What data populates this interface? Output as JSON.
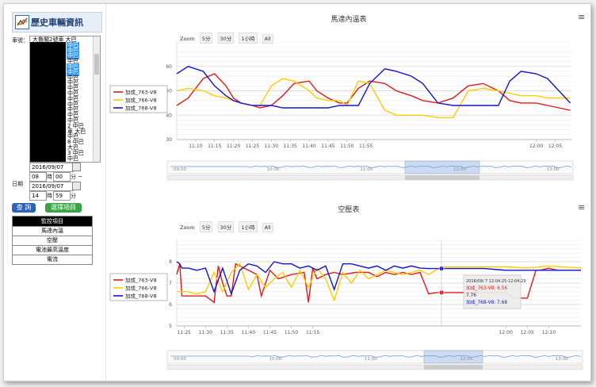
{
  "sidebar": {
    "title": "歷史車輛資訊",
    "vehicle_label": "車號：",
    "vehicles": [
      "大魯閣2號車 大巴",
      "中巴",
      "中巴",
      "中巴",
      "中巴",
      "中巴",
      "中巴",
      "中巴",
      "中巴",
      "中巴",
      "中巴",
      "中巴",
      "中巴",
      "中巴",
      "中巴",
      "中巴",
      "2 中巴",
      "車 大巴",
      "中巴",
      "8 中巴",
      "大巴",
      "3 中巴",
      "中巴"
    ],
    "date_label": "日期",
    "start_date": "2016/09/07",
    "start_hour": "08",
    "hour_unit": "時",
    "start_min": "00",
    "min_unit": "分 ~",
    "end_date": "2016/09/07",
    "end_hour": "14",
    "end_min": "59",
    "end_min_unit": "分",
    "query_button": "查 詢",
    "select_button": "選擇項目",
    "monitor_header": "監控項目",
    "monitor_items": [
      "馬達內溫",
      "空壓",
      "電池最高溫度",
      "電流"
    ]
  },
  "zoom_buttons": {
    "label": "Zoom",
    "b1": "5分",
    "b2": "30分",
    "b3": "1小時",
    "b4": "All"
  },
  "tooltip": {
    "header": "2016/09/ 7 12:04:25-12:04:29",
    "row1": "加成_763-V8: 6.56",
    "row2": "7.76",
    "row3": "加成_768-V8: 7.68"
  },
  "chart_data": [
    {
      "type": "line",
      "title": "馬達內溫表",
      "ylim": [
        30,
        70
      ],
      "yticks": [
        30,
        40,
        50,
        60
      ],
      "x_ticks": [
        "11:10",
        "11:15",
        "11:20",
        "11:25",
        "11:30",
        "11:35",
        "11:40",
        "11:45",
        "11:50",
        "11:55",
        "12:00",
        "12:05"
      ],
      "x_range": [
        11.05,
        12.093
      ],
      "navigator_labels": [
        "09:00",
        "10:00",
        "11:00",
        "12:00",
        "13:00"
      ],
      "series": [
        {
          "name": "加成_763-V8",
          "color": "#e31a1c",
          "x": [
            11.05,
            11.08,
            11.12,
            11.15,
            11.18,
            11.2,
            11.22,
            11.25,
            11.27,
            11.3,
            11.33,
            11.36,
            11.4,
            11.42,
            11.45,
            11.48,
            11.5,
            11.53,
            11.56,
            11.6,
            11.63,
            11.67,
            11.7,
            11.74,
            11.78,
            11.82,
            11.86,
            11.9,
            11.93,
            11.96,
            12.0,
            12.03,
            12.06,
            12.09
          ],
          "values": [
            44,
            47,
            55,
            57,
            52,
            47,
            45,
            44,
            43,
            44,
            48,
            53,
            54,
            50,
            47,
            45,
            45,
            51,
            54,
            53,
            50,
            48,
            46,
            45,
            47,
            52,
            53,
            50,
            46,
            45,
            45,
            44,
            43,
            42
          ]
        },
        {
          "name": "加成_766-V8",
          "color": "#ffcc00",
          "x": [
            11.05,
            11.08,
            11.12,
            11.15,
            11.18,
            11.2,
            11.22,
            11.25,
            11.27,
            11.3,
            11.33,
            11.36,
            11.4,
            11.42,
            11.45,
            11.48,
            11.5,
            11.53,
            11.56,
            11.6,
            11.63,
            11.67,
            11.7,
            11.74,
            11.78,
            11.82,
            11.86,
            11.9,
            11.93,
            11.96,
            12.0,
            12.03,
            12.06,
            12.09
          ],
          "values": [
            50,
            51,
            50,
            48,
            47,
            46,
            45,
            44,
            44,
            52,
            55,
            54,
            50,
            47,
            46,
            46,
            44,
            54,
            53,
            42,
            40,
            40,
            40,
            39,
            39,
            50,
            51,
            50,
            49,
            48,
            48,
            47,
            47,
            47
          ]
        },
        {
          "name": "加成_768-V8",
          "color": "#1414cc",
          "x": [
            11.05,
            11.08,
            11.12,
            11.15,
            11.18,
            11.2,
            11.22,
            11.25,
            11.27,
            11.3,
            11.33,
            11.36,
            11.4,
            11.42,
            11.45,
            11.48,
            11.5,
            11.53,
            11.56,
            11.6,
            11.63,
            11.67,
            11.7,
            11.74,
            11.78,
            11.82,
            11.86,
            11.9,
            11.93,
            11.96,
            12.0,
            12.03,
            12.06,
            12.09
          ],
          "values": [
            57,
            60,
            58,
            52,
            48,
            46,
            45,
            44,
            44,
            44,
            43,
            43,
            43,
            43,
            43,
            44,
            44,
            44,
            53,
            59,
            58,
            56,
            53,
            45,
            44,
            44,
            44,
            44,
            54,
            58,
            57,
            55,
            50,
            45
          ]
        }
      ]
    },
    {
      "type": "line",
      "title": "空壓表",
      "ylim": [
        5,
        9
      ],
      "yticks": [
        5,
        6,
        7,
        8
      ],
      "x_ticks": [
        "11:25",
        "11:30",
        "11:35",
        "11:40",
        "11:45",
        "11:50",
        "11:55",
        "12:00",
        "12:05",
        "12:10"
      ],
      "x_range": [
        11.233,
        12.175
      ],
      "navigator_labels": [
        "09:00",
        "10:00",
        "11:00",
        "12:00",
        "13:00"
      ],
      "series": [
        {
          "name": "加成_763-V8",
          "color": "#e31a1c",
          "x": [
            11.233,
            11.24,
            11.245,
            11.26,
            11.3,
            11.32,
            11.33,
            11.34,
            11.35,
            11.36,
            11.37,
            11.4,
            11.42,
            11.43,
            11.45,
            11.47,
            11.5,
            11.53,
            11.54,
            11.55,
            11.56,
            11.58,
            11.6,
            11.62,
            11.65,
            11.68,
            11.7,
            11.72,
            11.74,
            11.76,
            11.78,
            11.8,
            11.82,
            11.84,
            11.85,
            11.9,
            12.0,
            12.02,
            12.05,
            12.07,
            12.08,
            12.1,
            12.12,
            12.175
          ],
          "values": [
            7.4,
            7.9,
            6.4,
            6.4,
            6.4,
            6.1,
            7.8,
            7.0,
            6.4,
            6.4,
            7.9,
            7.6,
            7.4,
            6.4,
            7.6,
            7.2,
            7.4,
            7.5,
            6.1,
            7.7,
            7.2,
            7.4,
            7.5,
            7.4,
            7.5,
            7.5,
            7.3,
            7.5,
            7.4,
            7.5,
            7.4,
            7.5,
            6.5,
            6.56,
            6.56,
            6.56,
            6.56,
            6.3,
            6.3,
            7.6,
            7.6,
            7.7,
            7.6,
            7.6
          ]
        },
        {
          "name": "加成_766-V8",
          "color": "#ffcc00",
          "x": [
            11.233,
            11.24,
            11.26,
            11.28,
            11.3,
            11.32,
            11.34,
            11.36,
            11.38,
            11.4,
            11.42,
            11.44,
            11.46,
            11.48,
            11.5,
            11.52,
            11.54,
            11.56,
            11.58,
            11.6,
            11.62,
            11.64,
            11.66,
            11.68,
            11.7,
            11.72,
            11.74,
            11.76,
            11.78,
            11.8,
            11.82,
            11.85,
            11.9,
            11.95,
            12.0,
            12.05,
            12.1,
            12.175
          ],
          "values": [
            6.6,
            6.6,
            6.6,
            6.5,
            6.6,
            7.5,
            6.6,
            7.5,
            7.9,
            6.7,
            7.4,
            6.8,
            7.2,
            7.5,
            6.8,
            7.6,
            6.8,
            7.7,
            7.2,
            6.2,
            7.5,
            7.0,
            7.6,
            7.2,
            7.4,
            7.6,
            7.5,
            7.4,
            7.5,
            7.6,
            7.4,
            7.76,
            7.76,
            7.76,
            7.76,
            7.7,
            7.8,
            7.7
          ]
        },
        {
          "name": "加成_768-V8",
          "color": "#1414cc",
          "x": [
            11.233,
            11.24,
            11.245,
            11.26,
            11.28,
            11.3,
            11.32,
            11.34,
            11.36,
            11.38,
            11.4,
            11.42,
            11.44,
            11.46,
            11.48,
            11.5,
            11.52,
            11.54,
            11.56,
            11.58,
            11.6,
            11.62,
            11.64,
            11.66,
            11.68,
            11.7,
            11.72,
            11.74,
            11.76,
            11.78,
            11.8,
            11.82,
            11.85,
            11.9,
            11.95,
            12.0,
            12.05,
            12.1,
            12.175
          ],
          "values": [
            8.0,
            7.9,
            7.7,
            7.7,
            7.6,
            7.7,
            6.6,
            7.7,
            6.5,
            7.6,
            7.9,
            7.8,
            7.5,
            8.0,
            7.9,
            7.9,
            7.7,
            7.8,
            7.6,
            7.8,
            6.7,
            7.9,
            7.9,
            7.8,
            7.7,
            7.8,
            7.6,
            7.8,
            7.7,
            7.8,
            7.7,
            7.68,
            7.68,
            7.68,
            7.68,
            7.6,
            7.6,
            7.6,
            7.6
          ]
        }
      ]
    }
  ]
}
